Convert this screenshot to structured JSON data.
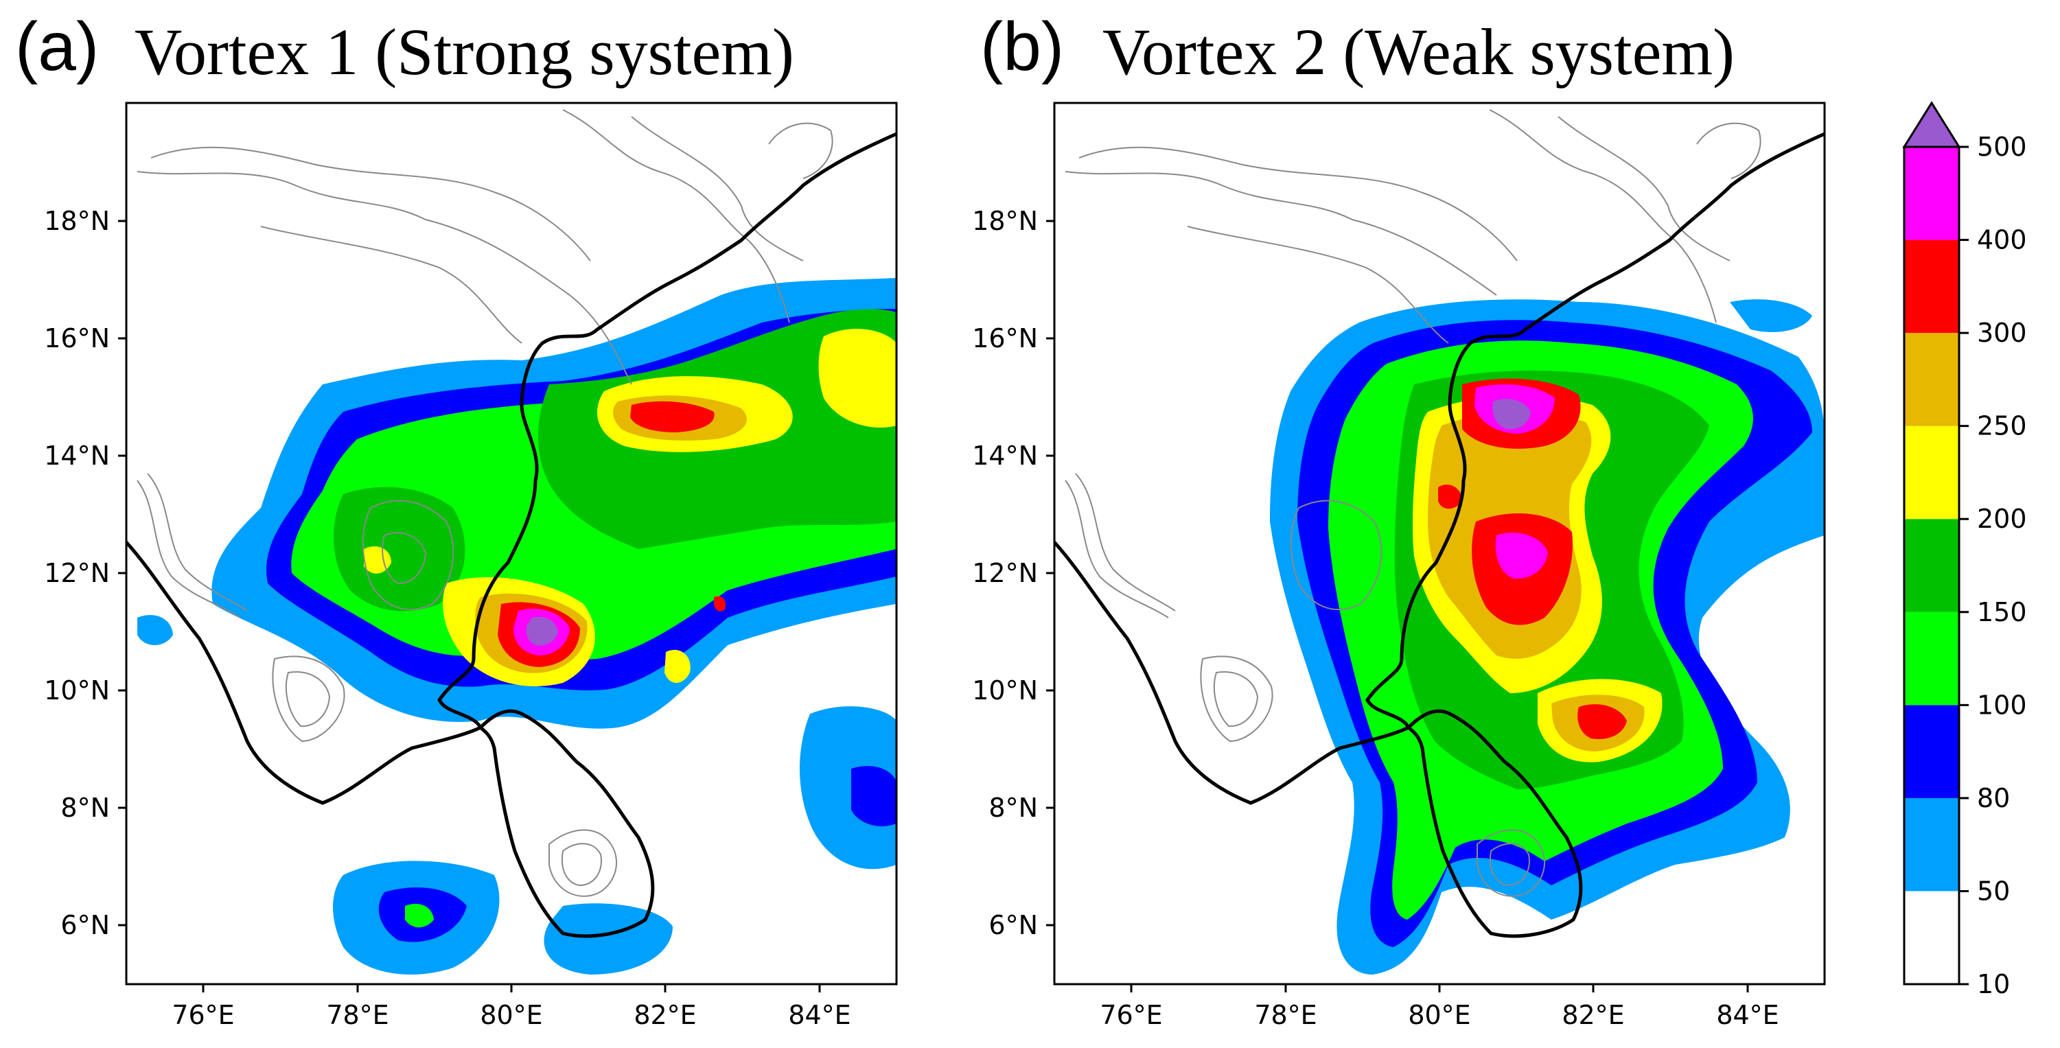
{
  "panels": [
    {
      "letter": "(a)",
      "title": "Vortex 1 (Strong system)"
    },
    {
      "letter": "(b)",
      "title": "Vortex 2 (Weak system)"
    }
  ],
  "axes": {
    "lon_ticks": [
      "76°E",
      "78°E",
      "80°E",
      "82°E",
      "84°E"
    ],
    "lat_ticks": [
      "18°N",
      "16°N",
      "14°N",
      "12°N",
      "10°N",
      "8°N",
      "6°N"
    ],
    "lon_range": [
      75,
      85
    ],
    "lat_range": [
      5,
      20
    ]
  },
  "colorbar": {
    "levels": [
      "10",
      "50",
      "80",
      "100",
      "150",
      "200",
      "250",
      "300",
      "400",
      "500"
    ],
    "colors": [
      "#ffffff",
      "#00a0ff",
      "#0000ff",
      "#00ff00",
      "#00c000",
      "#ffff00",
      "#e6b800",
      "#ff0000",
      "#ff00ff",
      "#9b59d0"
    ]
  },
  "colors": {
    "coast": "#000000",
    "terrain": "#888888"
  }
}
